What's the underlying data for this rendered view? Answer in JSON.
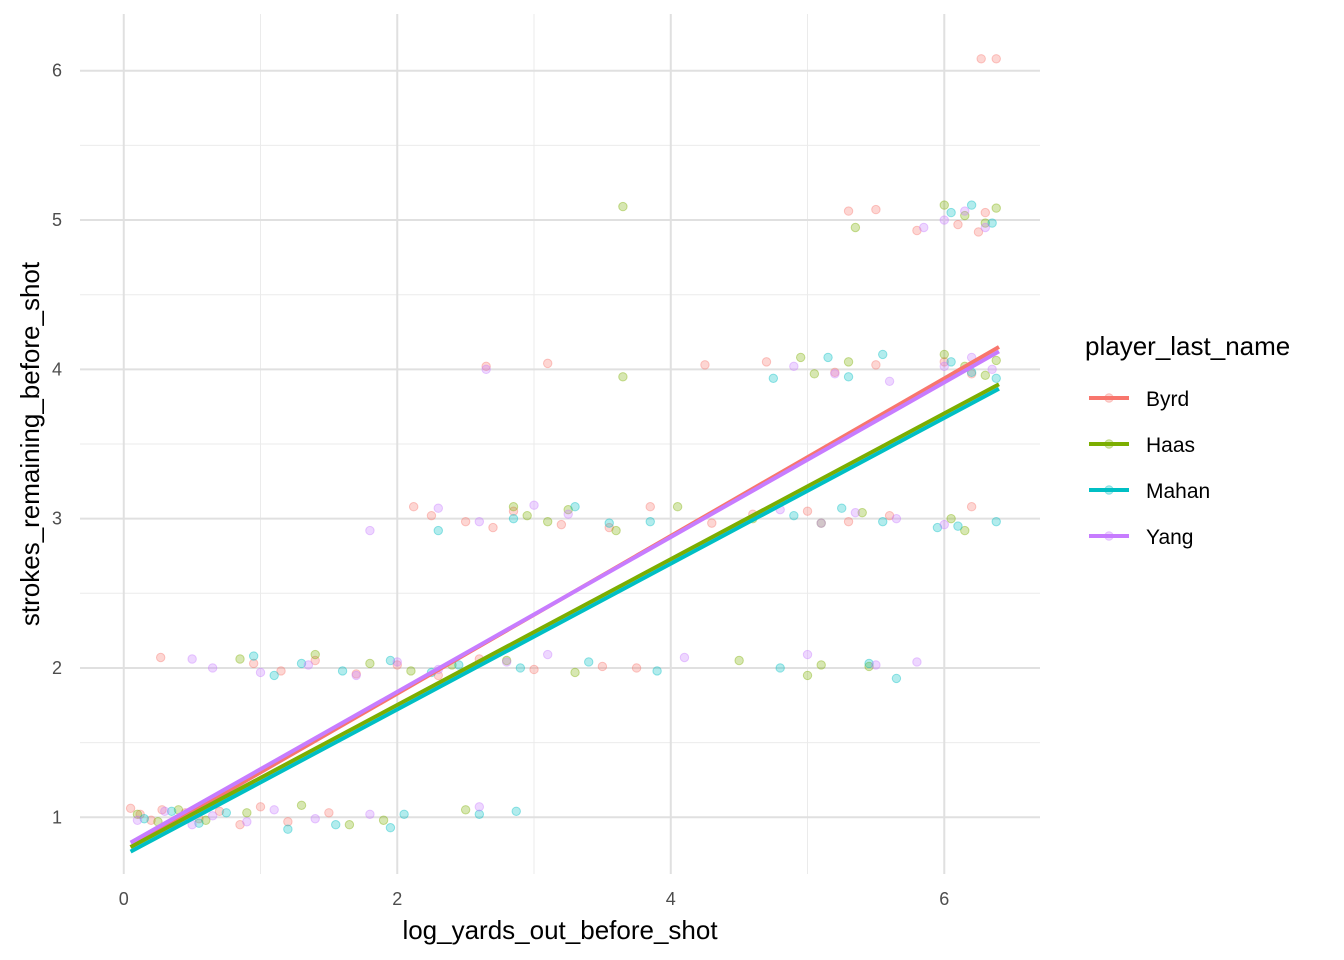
{
  "chart_data": {
    "type": "scatter",
    "title": "",
    "xlabel": "log_yards_out_before_shot",
    "ylabel": "strokes_remaining_before_shot",
    "xlim": [
      -0.32,
      6.7
    ],
    "ylim": [
      0.62,
      6.38
    ],
    "x_ticks": [
      0,
      2,
      4,
      6
    ],
    "y_ticks": [
      1,
      2,
      3,
      4,
      5,
      6
    ],
    "x_tick_labels": [
      "0",
      "2",
      "4",
      "6"
    ],
    "y_tick_labels": [
      "1",
      "2",
      "3",
      "4",
      "5",
      "6"
    ],
    "grid": true,
    "legend": {
      "title": "player_last_name",
      "position": "right"
    },
    "point_alpha": 0.3,
    "series": [
      {
        "name": "Byrd",
        "color": "#F8766D",
        "fit": {
          "x": [
            0.05,
            6.4
          ],
          "y": [
            0.8,
            4.15
          ]
        },
        "points": [
          [
            0.05,
            1.06
          ],
          [
            0.12,
            1.02
          ],
          [
            0.2,
            0.98
          ],
          [
            0.28,
            1.05
          ],
          [
            0.35,
            0.96
          ],
          [
            0.45,
            1.03
          ],
          [
            0.55,
            0.99
          ],
          [
            0.7,
            1.04
          ],
          [
            0.85,
            0.95
          ],
          [
            1.0,
            1.07
          ],
          [
            1.2,
            0.97
          ],
          [
            1.5,
            1.03
          ],
          [
            0.27,
            2.07
          ],
          [
            0.95,
            2.03
          ],
          [
            1.15,
            1.98
          ],
          [
            1.4,
            2.05
          ],
          [
            1.7,
            1.96
          ],
          [
            2.0,
            2.02
          ],
          [
            2.3,
            1.95
          ],
          [
            2.6,
            2.06
          ],
          [
            3.0,
            1.99
          ],
          [
            3.5,
            2.01
          ],
          [
            3.75,
            2.0
          ],
          [
            2.12,
            3.08
          ],
          [
            2.25,
            3.02
          ],
          [
            2.5,
            2.98
          ],
          [
            2.7,
            2.94
          ],
          [
            2.85,
            3.05
          ],
          [
            3.2,
            2.96
          ],
          [
            3.55,
            2.94
          ],
          [
            3.85,
            3.08
          ],
          [
            4.3,
            2.97
          ],
          [
            4.6,
            3.03
          ],
          [
            5.0,
            3.05
          ],
          [
            5.3,
            2.98
          ],
          [
            5.6,
            3.02
          ],
          [
            6.2,
            3.08
          ],
          [
            2.65,
            4.02
          ],
          [
            3.1,
            4.04
          ],
          [
            4.25,
            4.03
          ],
          [
            4.7,
            4.05
          ],
          [
            5.2,
            3.98
          ],
          [
            5.5,
            4.03
          ],
          [
            6.0,
            4.05
          ],
          [
            6.2,
            3.97
          ],
          [
            5.3,
            5.06
          ],
          [
            5.5,
            5.07
          ],
          [
            5.8,
            4.93
          ],
          [
            6.1,
            4.97
          ],
          [
            6.25,
            4.92
          ],
          [
            6.3,
            5.05
          ],
          [
            6.27,
            6.08
          ],
          [
            6.38,
            6.08
          ]
        ]
      },
      {
        "name": "Haas",
        "color": "#7CAE00",
        "fit": {
          "x": [
            0.05,
            6.4
          ],
          "y": [
            0.8,
            3.9
          ]
        },
        "points": [
          [
            0.1,
            1.02
          ],
          [
            0.25,
            0.97
          ],
          [
            0.4,
            1.05
          ],
          [
            0.6,
            0.98
          ],
          [
            0.9,
            1.03
          ],
          [
            1.3,
            1.08
          ],
          [
            1.65,
            0.95
          ],
          [
            1.9,
            0.98
          ],
          [
            2.5,
            1.05
          ],
          [
            0.85,
            2.06
          ],
          [
            1.4,
            2.09
          ],
          [
            1.8,
            2.03
          ],
          [
            2.1,
            1.98
          ],
          [
            2.4,
            2.02
          ],
          [
            2.8,
            2.05
          ],
          [
            3.3,
            1.97
          ],
          [
            4.5,
            2.05
          ],
          [
            5.0,
            1.95
          ],
          [
            5.1,
            2.02
          ],
          [
            5.45,
            2.01
          ],
          [
            2.85,
            3.08
          ],
          [
            2.95,
            3.02
          ],
          [
            3.1,
            2.98
          ],
          [
            3.25,
            3.06
          ],
          [
            3.6,
            2.92
          ],
          [
            4.05,
            3.08
          ],
          [
            4.6,
            3.0
          ],
          [
            5.1,
            2.97
          ],
          [
            5.4,
            3.04
          ],
          [
            6.05,
            3.0
          ],
          [
            6.15,
            2.92
          ],
          [
            3.65,
            3.95
          ],
          [
            4.95,
            4.08
          ],
          [
            5.05,
            3.97
          ],
          [
            5.3,
            4.05
          ],
          [
            6.0,
            4.1
          ],
          [
            6.15,
            4.02
          ],
          [
            6.3,
            3.96
          ],
          [
            6.38,
            4.06
          ],
          [
            3.65,
            5.09
          ],
          [
            5.35,
            4.95
          ],
          [
            6.0,
            5.1
          ],
          [
            6.15,
            5.03
          ],
          [
            6.3,
            4.98
          ],
          [
            6.38,
            5.08
          ]
        ]
      },
      {
        "name": "Mahan",
        "color": "#00BFC4",
        "fit": {
          "x": [
            0.05,
            6.4
          ],
          "y": [
            0.77,
            3.87
          ]
        },
        "points": [
          [
            0.15,
            0.99
          ],
          [
            0.35,
            1.04
          ],
          [
            0.55,
            0.96
          ],
          [
            0.75,
            1.03
          ],
          [
            1.2,
            0.92
          ],
          [
            1.55,
            0.95
          ],
          [
            1.95,
            0.93
          ],
          [
            2.05,
            1.02
          ],
          [
            2.6,
            1.02
          ],
          [
            2.87,
            1.04
          ],
          [
            0.95,
            2.08
          ],
          [
            1.1,
            1.95
          ],
          [
            1.3,
            2.03
          ],
          [
            1.6,
            1.98
          ],
          [
            1.95,
            2.05
          ],
          [
            2.25,
            1.97
          ],
          [
            2.45,
            2.02
          ],
          [
            2.9,
            2.0
          ],
          [
            3.4,
            2.04
          ],
          [
            3.9,
            1.98
          ],
          [
            4.8,
            2.0
          ],
          [
            5.45,
            2.03
          ],
          [
            5.65,
            1.93
          ],
          [
            2.3,
            2.92
          ],
          [
            2.85,
            3.0
          ],
          [
            3.3,
            3.08
          ],
          [
            3.55,
            2.97
          ],
          [
            3.85,
            2.98
          ],
          [
            4.9,
            3.02
          ],
          [
            5.25,
            3.07
          ],
          [
            5.55,
            2.98
          ],
          [
            5.95,
            2.94
          ],
          [
            6.1,
            2.95
          ],
          [
            6.38,
            2.98
          ],
          [
            4.75,
            3.94
          ],
          [
            5.15,
            4.08
          ],
          [
            5.3,
            3.95
          ],
          [
            5.55,
            4.1
          ],
          [
            6.05,
            4.05
          ],
          [
            6.2,
            3.98
          ],
          [
            6.38,
            3.94
          ],
          [
            6.05,
            5.05
          ],
          [
            6.2,
            5.1
          ],
          [
            6.35,
            4.98
          ]
        ]
      },
      {
        "name": "Yang",
        "color": "#C77CFF",
        "fit": {
          "x": [
            0.05,
            6.4
          ],
          "y": [
            0.83,
            4.12
          ]
        },
        "points": [
          [
            0.1,
            0.98
          ],
          [
            0.3,
            1.04
          ],
          [
            0.5,
            0.95
          ],
          [
            0.65,
            1.01
          ],
          [
            0.9,
            0.97
          ],
          [
            1.1,
            1.05
          ],
          [
            1.4,
            0.99
          ],
          [
            1.8,
            1.02
          ],
          [
            2.6,
            1.07
          ],
          [
            0.5,
            2.06
          ],
          [
            0.65,
            2.0
          ],
          [
            1.0,
            1.97
          ],
          [
            1.35,
            2.02
          ],
          [
            1.7,
            1.95
          ],
          [
            2.0,
            2.04
          ],
          [
            2.3,
            1.99
          ],
          [
            2.8,
            2.04
          ],
          [
            3.1,
            2.09
          ],
          [
            4.1,
            2.07
          ],
          [
            5.0,
            2.09
          ],
          [
            5.5,
            2.02
          ],
          [
            5.8,
            2.04
          ],
          [
            1.8,
            2.92
          ],
          [
            2.3,
            3.07
          ],
          [
            2.6,
            2.98
          ],
          [
            3.0,
            3.09
          ],
          [
            3.25,
            3.03
          ],
          [
            4.8,
            3.06
          ],
          [
            5.1,
            2.97
          ],
          [
            5.35,
            3.04
          ],
          [
            5.65,
            3.0
          ],
          [
            6.0,
            2.96
          ],
          [
            2.65,
            4.0
          ],
          [
            4.9,
            4.02
          ],
          [
            5.2,
            3.97
          ],
          [
            5.6,
            3.92
          ],
          [
            6.0,
            4.02
          ],
          [
            6.2,
            4.08
          ],
          [
            6.35,
            4.0
          ],
          [
            5.85,
            4.95
          ],
          [
            6.0,
            5.0
          ],
          [
            6.15,
            5.06
          ],
          [
            6.3,
            4.95
          ]
        ]
      }
    ]
  }
}
